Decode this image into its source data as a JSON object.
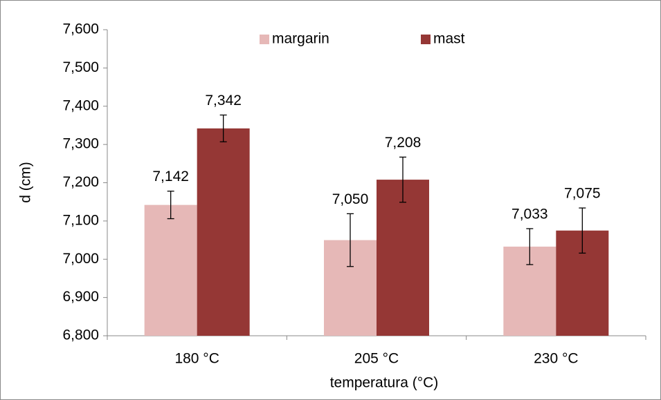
{
  "chart_data": {
    "type": "bar",
    "x_label": "temperatura (°C)",
    "y_label": "d (cm)",
    "categories": [
      "180 °C",
      "205 °C",
      "230 °C"
    ],
    "series": [
      {
        "name": "margarin",
        "color": "#e6b8b7",
        "values": [
          7.142,
          7.05,
          7.033
        ],
        "value_labels": [
          "7,142",
          "7,050",
          "7,033"
        ],
        "errors": [
          0.036,
          0.069,
          0.047
        ]
      },
      {
        "name": "mast",
        "color": "#953735",
        "values": [
          7.342,
          7.208,
          7.075
        ],
        "value_labels": [
          "7,342",
          "7,208",
          "7,075"
        ],
        "errors": [
          0.035,
          0.059,
          0.059
        ]
      }
    ],
    "ylim": [
      6.8,
      7.6
    ],
    "yticks": [
      {
        "value": 6.8,
        "label": "6,800"
      },
      {
        "value": 6.9,
        "label": "6,900"
      },
      {
        "value": 7.0,
        "label": "7,000"
      },
      {
        "value": 7.1,
        "label": "7,100"
      },
      {
        "value": 7.2,
        "label": "7,200"
      },
      {
        "value": 7.3,
        "label": "7,300"
      },
      {
        "value": 7.4,
        "label": "7,400"
      },
      {
        "value": 7.5,
        "label": "7,500"
      },
      {
        "value": 7.6,
        "label": "7,600"
      }
    ],
    "legend": "top"
  }
}
